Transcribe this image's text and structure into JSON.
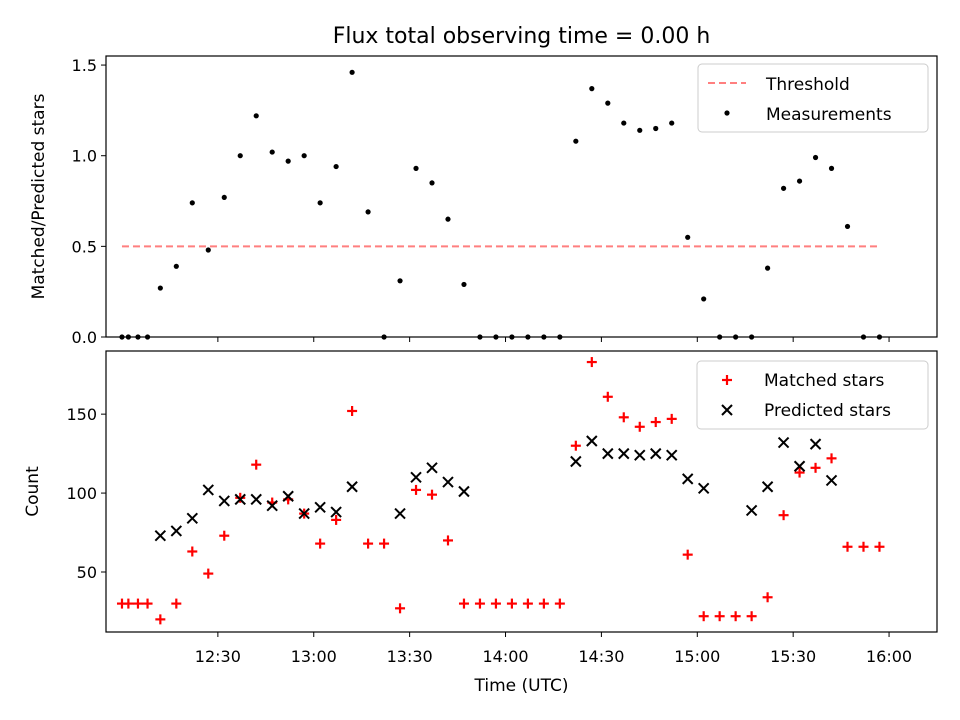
{
  "chart_data": [
    {
      "type": "scatter",
      "title": "Flux total observing time = 0.00 h",
      "xlabel": "",
      "ylabel": "Matched/Predicted stars",
      "xlim_minutes": [
        715,
        975
      ],
      "ylim": [
        0,
        1.55
      ],
      "yticks": [
        "0.0",
        "0.5",
        "1.0",
        "1.5"
      ],
      "legend": "top-right",
      "series": [
        {
          "name": "Threshold",
          "kind": "dashed-line",
          "color": "#ff7f7f",
          "x": [
            720,
            957
          ],
          "y": [
            0.5,
            0.5
          ]
        },
        {
          "name": "Measurements",
          "kind": "dot",
          "color": "#000000",
          "x": [
            720,
            722,
            725,
            728,
            732,
            737,
            742,
            747,
            752,
            757,
            762,
            767,
            772,
            777,
            782,
            787,
            792,
            797,
            802,
            807,
            812,
            817,
            822,
            827,
            832,
            837,
            842,
            847,
            852,
            857,
            862,
            867,
            872,
            877,
            882,
            887,
            892,
            897,
            902,
            907,
            912,
            917,
            922,
            927,
            932,
            937,
            942,
            947,
            952,
            957
          ],
          "y": [
            0,
            0,
            0,
            0,
            0.27,
            0.39,
            0.74,
            0.48,
            0.77,
            1.0,
            1.22,
            1.02,
            0.97,
            1.0,
            0.74,
            0.94,
            1.46,
            0.69,
            0,
            0.31,
            0.93,
            0.85,
            0.65,
            0.29,
            0,
            0,
            0,
            0,
            0,
            0,
            1.08,
            1.37,
            1.29,
            1.18,
            1.14,
            1.15,
            1.18,
            0.55,
            0.21,
            0,
            0,
            0,
            0.38,
            0.82,
            0.86,
            0.99,
            0.93,
            0.61,
            0,
            0
          ]
        }
      ]
    },
    {
      "type": "scatter",
      "title": "",
      "xlabel": "Time (UTC)",
      "ylabel": "Count",
      "xlim_minutes": [
        715,
        975
      ],
      "ylim": [
        12,
        190
      ],
      "yticks": [
        "50",
        "100",
        "150"
      ],
      "xticks": [
        "12:30",
        "13:00",
        "13:30",
        "14:00",
        "14:30",
        "15:00",
        "15:30",
        "16:00"
      ],
      "legend": "top-right",
      "series": [
        {
          "name": "Matched stars",
          "marker": "+",
          "color": "#ff0000",
          "x": [
            720,
            722,
            725,
            728,
            732,
            737,
            742,
            747,
            752,
            757,
            762,
            767,
            772,
            777,
            782,
            787,
            792,
            797,
            802,
            807,
            812,
            817,
            822,
            827,
            832,
            837,
            842,
            847,
            852,
            857,
            862,
            867,
            872,
            877,
            882,
            887,
            892,
            897,
            902,
            907,
            912,
            917,
            922,
            927,
            932,
            937,
            942,
            947,
            952,
            957
          ],
          "y": [
            30,
            30,
            30,
            30,
            20,
            30,
            63,
            49,
            73,
            97,
            118,
            94,
            96,
            87,
            68,
            83,
            152,
            68,
            68,
            27,
            102,
            99,
            70,
            30,
            30,
            30,
            30,
            30,
            30,
            30,
            130,
            183,
            161,
            148,
            142,
            145,
            147,
            61,
            22,
            22,
            22,
            22,
            34,
            86,
            113,
            116,
            122,
            66,
            66,
            66
          ]
        },
        {
          "name": "Predicted stars",
          "marker": "x",
          "color": "#000000",
          "x": [
            732,
            737,
            742,
            747,
            752,
            757,
            762,
            767,
            772,
            777,
            782,
            787,
            792,
            807,
            812,
            817,
            822,
            827,
            862,
            867,
            872,
            877,
            882,
            887,
            892,
            897,
            902,
            917,
            922,
            927,
            932,
            937,
            942
          ],
          "y": [
            73,
            76,
            84,
            102,
            95,
            96,
            96,
            92,
            98,
            87,
            91,
            88,
            104,
            87,
            110,
            116,
            107,
            101,
            120,
            133,
            125,
            125,
            124,
            125,
            124,
            109,
            103,
            89,
            104,
            132,
            117,
            131,
            108
          ]
        }
      ]
    }
  ]
}
